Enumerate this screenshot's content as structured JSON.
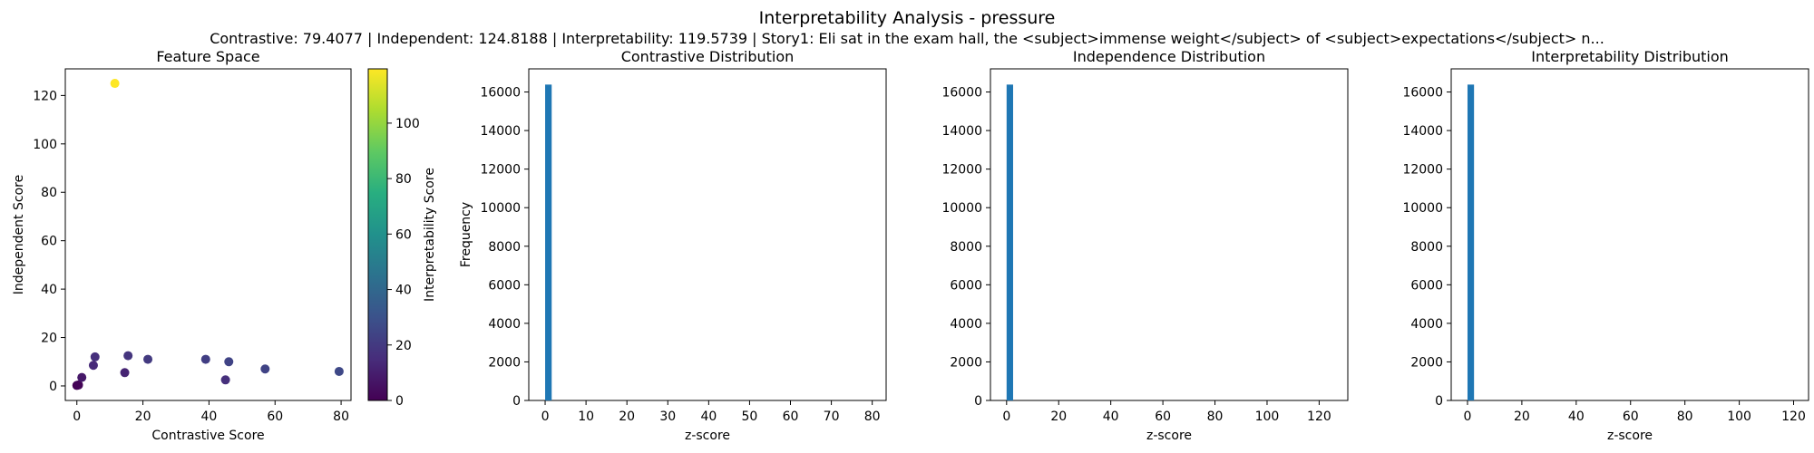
{
  "figure": {
    "title": "Interpretability Analysis - pressure",
    "subtitle": "Contrastive: 79.4077 | Independent: 124.8188 | Interpretability: 119.5739 | Story1: Eli sat in the exam hall, the <subject>immense weight</subject> of <subject>expectations</subject> n..."
  },
  "chart_data": [
    {
      "type": "scatter",
      "title": "Feature Space",
      "xlabel": "Contrastive Score",
      "ylabel": "Independent Score",
      "xlim": [
        -3.5,
        83
      ],
      "ylim": [
        -6,
        131
      ],
      "xticks": [
        0,
        20,
        40,
        60,
        80
      ],
      "yticks": [
        0,
        20,
        40,
        60,
        80,
        100,
        120
      ],
      "points": [
        {
          "x": 0.0,
          "y": 0.2,
          "c": 0.5
        },
        {
          "x": 0.5,
          "y": 0.4,
          "c": 1.0
        },
        {
          "x": 1.5,
          "y": 3.5,
          "c": 8
        },
        {
          "x": 5.0,
          "y": 8.5,
          "c": 14
        },
        {
          "x": 5.5,
          "y": 12.0,
          "c": 16
        },
        {
          "x": 11.5,
          "y": 125.0,
          "c": 119.57
        },
        {
          "x": 14.5,
          "y": 5.5,
          "c": 12
        },
        {
          "x": 15.5,
          "y": 12.5,
          "c": 18
        },
        {
          "x": 21.5,
          "y": 11.0,
          "c": 20
        },
        {
          "x": 39.0,
          "y": 11.0,
          "c": 22
        },
        {
          "x": 45.0,
          "y": 2.5,
          "c": 16
        },
        {
          "x": 46.0,
          "y": 10.0,
          "c": 24
        },
        {
          "x": 57.0,
          "y": 7.0,
          "c": 24
        },
        {
          "x": 79.4,
          "y": 6.0,
          "c": 26
        }
      ],
      "colorbar": {
        "label": "Interpretability Score",
        "range": [
          0,
          119.57
        ],
        "ticks": [
          0,
          20,
          40,
          60,
          80,
          100
        ],
        "colormap": "viridis"
      },
      "grid": false
    },
    {
      "type": "bar",
      "title": "Contrastive Distribution",
      "xlabel": "z-score",
      "ylabel": "Frequency",
      "xlim": [
        -4,
        83.4
      ],
      "ylim": [
        0,
        17200
      ],
      "xticks": [
        0,
        10,
        20,
        30,
        40,
        50,
        60,
        70,
        80
      ],
      "yticks": [
        0,
        2000,
        4000,
        6000,
        8000,
        10000,
        12000,
        14000,
        16000
      ],
      "bins": [
        {
          "x0": 0.0,
          "x1": 1.6,
          "count": 16384
        }
      ],
      "color": "#1f77b4"
    },
    {
      "type": "bar",
      "title": "Independence Distribution",
      "xlabel": "z-score",
      "ylabel": "",
      "xlim": [
        -6.2,
        131
      ],
      "ylim": [
        0,
        17200
      ],
      "xticks": [
        0,
        20,
        40,
        60,
        80,
        100,
        120
      ],
      "yticks": [
        0,
        2000,
        4000,
        6000,
        8000,
        10000,
        12000,
        14000,
        16000
      ],
      "bins": [
        {
          "x0": 0.0,
          "x1": 2.5,
          "count": 16384
        }
      ],
      "color": "#1f77b4"
    },
    {
      "type": "bar",
      "title": "Interpretability Distribution",
      "xlabel": "z-score",
      "ylabel": "",
      "xlim": [
        -6,
        125.5
      ],
      "ylim": [
        0,
        17200
      ],
      "xticks": [
        0,
        20,
        40,
        60,
        80,
        100,
        120
      ],
      "yticks": [
        0,
        2000,
        4000,
        6000,
        8000,
        10000,
        12000,
        14000,
        16000
      ],
      "bins": [
        {
          "x0": 0.0,
          "x1": 2.4,
          "count": 16384
        }
      ],
      "color": "#1f77b4"
    }
  ]
}
